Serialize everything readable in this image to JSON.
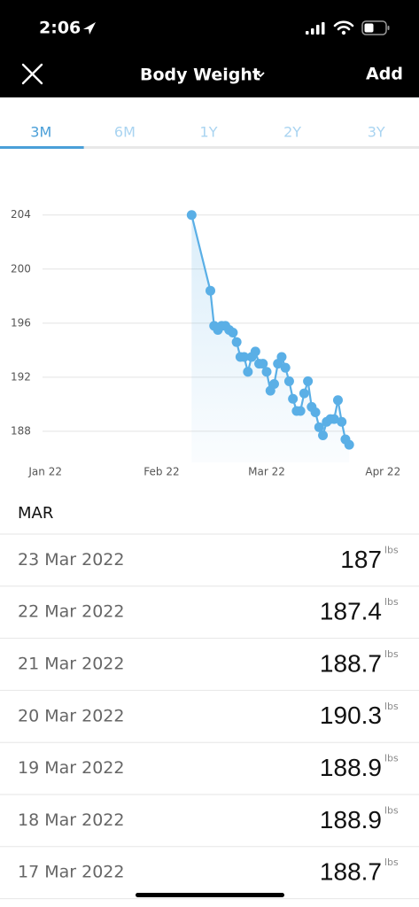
{
  "status_bar": {
    "time": "2:06"
  },
  "header": {
    "title": "Body Weight",
    "action": "Add"
  },
  "tabs": {
    "items": [
      "3M",
      "6M",
      "1Y",
      "2Y",
      "3Y"
    ],
    "active": "3M"
  },
  "chart_data": {
    "type": "line",
    "x": [
      "2022-02-09",
      "2022-02-14",
      "2022-02-15",
      "2022-02-16",
      "2022-02-17",
      "2022-02-18",
      "2022-02-19",
      "2022-02-20",
      "2022-02-21",
      "2022-02-22",
      "2022-02-23",
      "2022-02-24",
      "2022-02-25",
      "2022-02-26",
      "2022-02-27",
      "2022-02-28",
      "2022-03-01",
      "2022-03-02",
      "2022-03-03",
      "2022-03-04",
      "2022-03-05",
      "2022-03-06",
      "2022-03-07",
      "2022-03-08",
      "2022-03-09",
      "2022-03-10",
      "2022-03-11",
      "2022-03-12",
      "2022-03-13",
      "2022-03-14",
      "2022-03-15",
      "2022-03-16",
      "2022-03-17",
      "2022-03-18",
      "2022-03-19",
      "2022-03-20",
      "2022-03-21",
      "2022-03-22",
      "2022-03-23"
    ],
    "values": [
      204,
      198.4,
      195.8,
      195.5,
      195.8,
      195.8,
      195.5,
      195.3,
      194.6,
      193.5,
      193.5,
      192.4,
      193.5,
      193.9,
      193.0,
      193.0,
      192.4,
      191.0,
      191.5,
      193.0,
      193.5,
      192.7,
      191.7,
      190.4,
      189.5,
      189.5,
      190.8,
      191.7,
      189.8,
      189.4,
      188.3,
      187.7,
      188.7,
      188.9,
      188.9,
      190.3,
      188.7,
      187.4,
      187
    ],
    "color": "#5aafe6",
    "xlim": [
      "2021-12-27",
      "2022-04-04"
    ],
    "xticks": [
      {
        "value": "2022-01-01",
        "label": "Jan 22"
      },
      {
        "value": "2022-02-01",
        "label": "Feb 22"
      },
      {
        "value": "2022-03-01",
        "label": "Mar 22"
      },
      {
        "value": "2022-04-01",
        "label": "Apr 22"
      }
    ],
    "ylim": [
      185.7,
      206.8
    ],
    "yticks": [
      188,
      192,
      196,
      200,
      204
    ],
    "grid": true
  },
  "list": {
    "section": "MAR",
    "unit": "lbs",
    "rows": [
      {
        "date": "23 Mar 2022",
        "value": 187
      },
      {
        "date": "22 Mar 2022",
        "value": 187.4
      },
      {
        "date": "21 Mar 2022",
        "value": 188.7
      },
      {
        "date": "20 Mar 2022",
        "value": 190.3
      },
      {
        "date": "19 Mar 2022",
        "value": 188.9
      },
      {
        "date": "18 Mar 2022",
        "value": 188.9
      },
      {
        "date": "17 Mar 2022",
        "value": 188.7
      }
    ]
  }
}
